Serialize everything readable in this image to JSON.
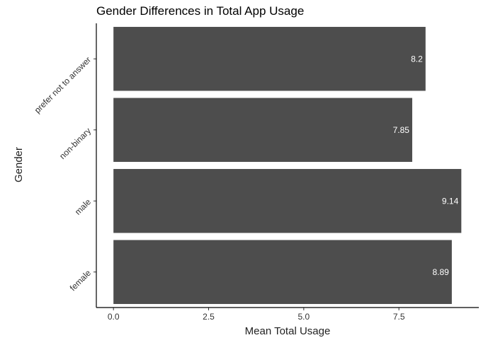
{
  "chart_data": {
    "type": "bar",
    "orientation": "horizontal",
    "title": "Gender Differences in Total App Usage",
    "xlabel": "Mean Total Usage",
    "ylabel": "Gender",
    "categories": [
      "female",
      "male",
      "non-binary",
      "prefer not to answer"
    ],
    "values": [
      8.89,
      9.14,
      7.85,
      8.2
    ],
    "data_labels": [
      "8.89",
      "9.14",
      "7.85",
      "8.2"
    ],
    "xticks": [
      0,
      2.5,
      5,
      7.5
    ],
    "xtick_labels": [
      "0.0",
      "2.5",
      "5.0",
      "7.5"
    ],
    "xlim": [
      -0.45,
      9.6
    ],
    "grid": false,
    "bar_color": "#4d4d4d"
  }
}
